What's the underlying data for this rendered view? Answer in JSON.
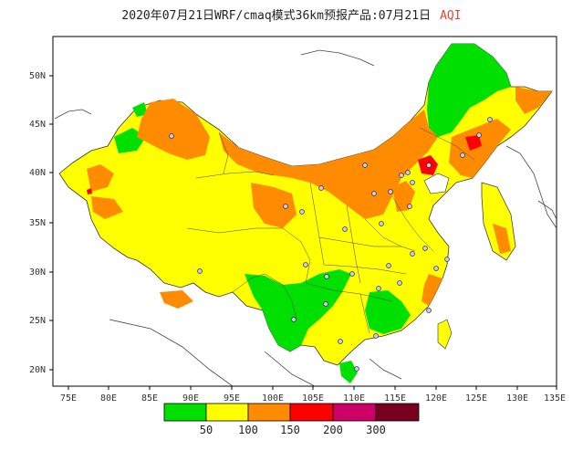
{
  "title": {
    "main": "2020年07月21日WRF/cmaq模式36km预报产品:07月21日",
    "highlight": "AQI"
  },
  "axes": {
    "lat_labels": [
      "50N",
      "45N",
      "40N",
      "35N",
      "30N",
      "25N",
      "20N"
    ],
    "lon_labels": [
      "75E",
      "80E",
      "85E",
      "90E",
      "95E",
      "100E",
      "105E",
      "110E",
      "115E",
      "120E",
      "125E",
      "130E",
      "135E"
    ]
  },
  "legend": {
    "colors": [
      "#00e000",
      "#ffff00",
      "#ff8c00",
      "#ff0000",
      "#cc0066",
      "#7a0022"
    ],
    "labels": [
      "50",
      "100",
      "150",
      "200",
      "300"
    ]
  },
  "map": {
    "colors": {
      "ocean": "#ffffff",
      "good": "#00e000",
      "moderate": "#ffff00",
      "sensitive": "#ff8c00",
      "unhealthy": "#ff0000",
      "very_unhealthy": "#cc0066"
    }
  }
}
